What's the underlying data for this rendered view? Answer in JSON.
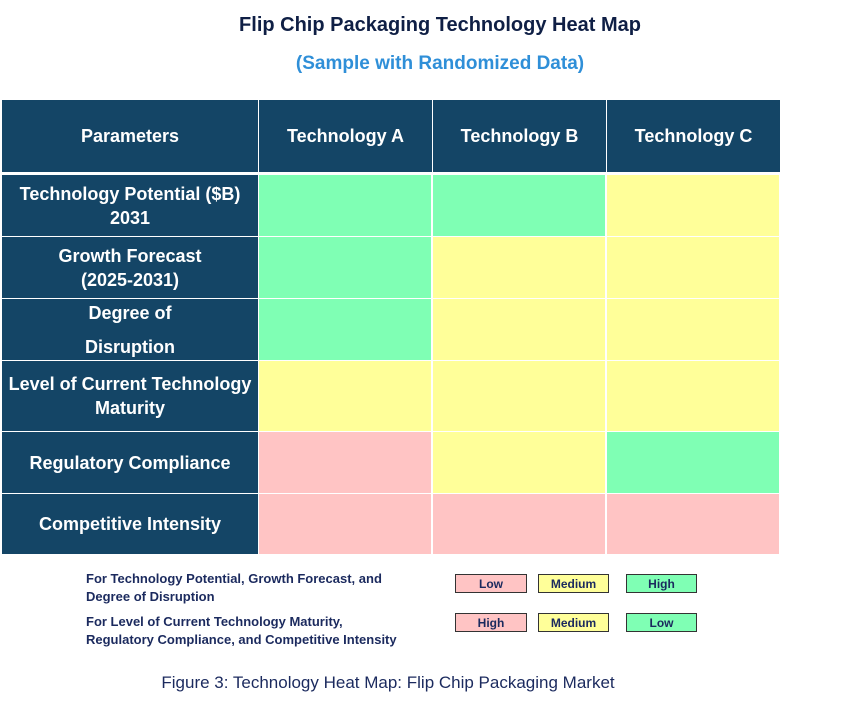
{
  "header": {
    "title": "Flip Chip Packaging Technology Heat Map",
    "subtitle": "(Sample with Randomized Data)"
  },
  "table": {
    "columns": [
      "Parameters",
      "Technology A",
      "Technology B",
      "Technology C"
    ],
    "rows": [
      {
        "label": "Technology Potential ($B)\n2031",
        "colors": [
          "#7fffb4",
          "#7fffb4",
          "#ffff99"
        ]
      },
      {
        "label": "Growth Forecast\n(2025-2031)",
        "colors": [
          "#7fffb4",
          "#ffff99",
          "#ffff99"
        ]
      },
      {
        "label": "Degree of\nDisruption",
        "colors": [
          "#7fffb4",
          "#ffff99",
          "#ffff99"
        ]
      },
      {
        "label": "Level of Current Technology\nMaturity",
        "colors": [
          "#ffff99",
          "#ffff99",
          "#ffff99"
        ]
      },
      {
        "label": "Regulatory Compliance",
        "colors": [
          "#ffc4c4",
          "#ffff99",
          "#7fffb4"
        ]
      },
      {
        "label": "Competitive Intensity",
        "colors": [
          "#ffc4c4",
          "#ffc4c4",
          "#ffc4c4"
        ]
      }
    ]
  },
  "legend": [
    {
      "text": "For Technology Potential, Growth Forecast, and\nDegree of Disruption",
      "items": [
        {
          "label": "Low",
          "color": "#ffc4c4"
        },
        {
          "label": "Medium",
          "color": "#ffff99"
        },
        {
          "label": "High",
          "color": "#7fffb4"
        }
      ]
    },
    {
      "text": "For Level of Current Technology Maturity,\nRegulatory Compliance, and Competitive Intensity",
      "items": [
        {
          "label": "High",
          "color": "#ffc4c4"
        },
        {
          "label": "Medium",
          "color": "#ffff99"
        },
        {
          "label": "Low",
          "color": "#7fffb4"
        }
      ]
    }
  ],
  "caption": "Figure 3: Technology Heat Map: Flip Chip Packaging Market"
}
